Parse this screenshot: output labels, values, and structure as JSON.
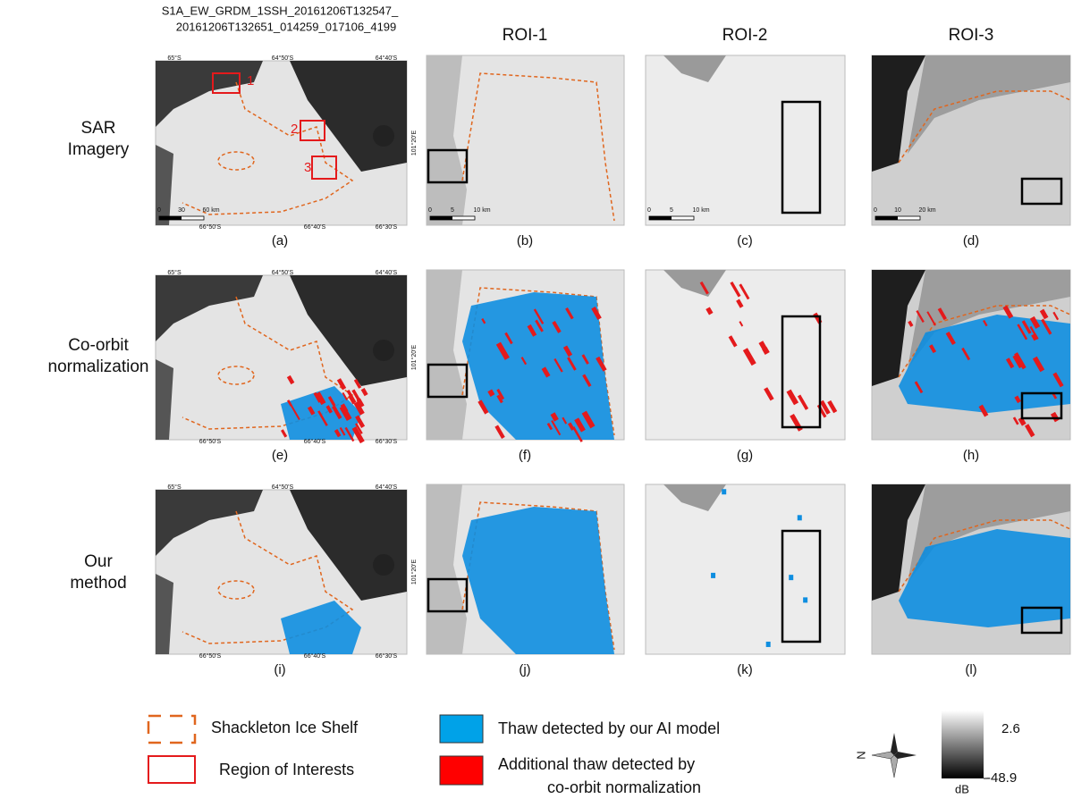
{
  "header": {
    "filename_lines": [
      "S1A_EW_GRDM_1SSH_20161206T132547_",
      "20161206T132651_014259_017106_4199"
    ]
  },
  "columns": [
    "ROI-1",
    "ROI-2",
    "ROI-3"
  ],
  "rows": [
    {
      "label_lines": [
        "SAR",
        "Imagery"
      ]
    },
    {
      "label_lines": [
        "Co-orbit",
        "normalization"
      ]
    },
    {
      "label_lines": [
        "Our",
        "method"
      ]
    }
  ],
  "panels": [
    "(a)",
    "(b)",
    "(c)",
    "(d)",
    "(e)",
    "(f)",
    "(g)",
    "(h)",
    "(i)",
    "(j)",
    "(k)",
    "(l)"
  ],
  "map_labels": {
    "top": [
      "65°S",
      "64°50'S",
      "64°40'S"
    ],
    "bottom": [
      "66°50'S",
      "66°40'S",
      "66°30'S"
    ],
    "side": "101°20'E"
  },
  "roi_labels": [
    "1",
    "2",
    "3"
  ],
  "scale_bars": [
    [
      "0",
      "30",
      "60 km"
    ],
    [
      "0",
      "5",
      "10 km"
    ],
    [
      "0",
      "5",
      "10 km"
    ],
    [
      "0",
      "10",
      "20 km"
    ]
  ],
  "legend": {
    "items": [
      {
        "lines": [
          "Shackleton Ice Shelf"
        ]
      },
      {
        "lines": [
          "Region of Interests"
        ]
      },
      {
        "lines": [
          "Thaw detected by our AI model"
        ]
      },
      {
        "lines": [
          "Additional thaw detected by",
          "co-orbit normalization"
        ]
      }
    ],
    "compass": "N",
    "colorbar": {
      "max": "2.6",
      "min": "-48.9",
      "unit": "dB"
    }
  }
}
